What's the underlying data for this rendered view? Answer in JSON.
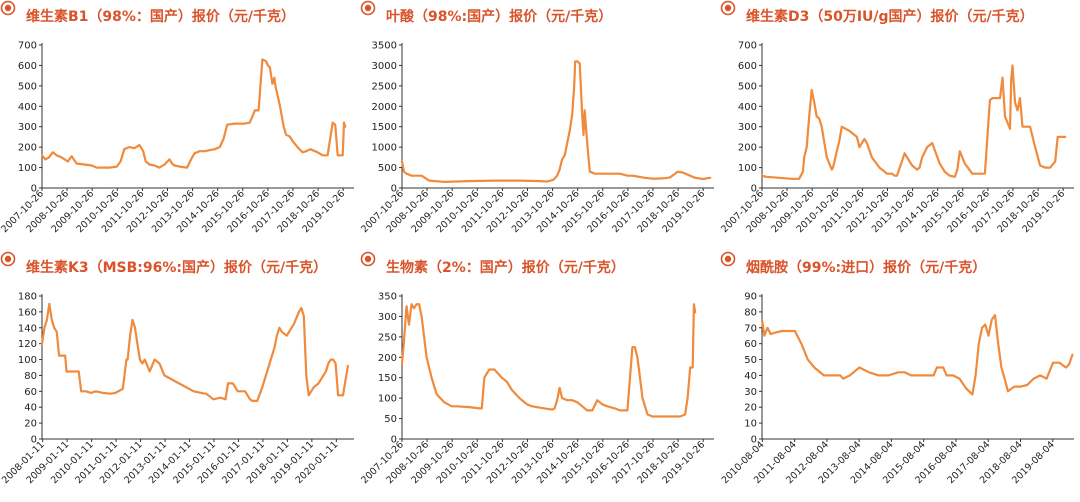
{
  "line_color": "#f08a3c",
  "title_color": "#d9542a",
  "chart_data": [
    {
      "type": "line",
      "title": "维生素B1（98%：国产）报价（元/千克）",
      "ylim": [
        0,
        700
      ],
      "yticks": [
        "0",
        "100",
        "200",
        "300",
        "400",
        "500",
        "600",
        "700"
      ],
      "xlim": [
        2007.82,
        2020.25
      ],
      "xticks": [
        "2007-10-26",
        "2008-10-26",
        "2009-10-26",
        "2010-10-26",
        "2011-10-26",
        "2012-10-26",
        "2013-10-26",
        "2014-10-26",
        "2015-10-26",
        "2016-10-26",
        "2017-10-26",
        "2018-10-26",
        "2019-10-26"
      ],
      "series": [
        {
          "x": [
            2007.82,
            2007.95,
            2008.1,
            2008.25,
            2008.4,
            2008.6,
            2008.85,
            2009.0,
            2009.2,
            2009.5,
            2009.8,
            2010.0,
            2010.5,
            2010.8,
            2010.95,
            2011.1,
            2011.3,
            2011.5,
            2011.7,
            2011.85,
            2011.95,
            2012.1,
            2012.3,
            2012.5,
            2012.7,
            2012.9,
            2013.0,
            2013.1,
            2013.3,
            2013.6,
            2013.8,
            2013.9,
            2014.1,
            2014.3,
            2014.5,
            2014.7,
            2014.9,
            2015.05,
            2015.2,
            2015.5,
            2015.9,
            2016.1,
            2016.3,
            2016.45,
            2016.6,
            2016.75,
            2016.82,
            2016.9,
            2017.0,
            2017.08,
            2017.12,
            2017.3,
            2017.45,
            2017.55,
            2017.65,
            2017.7,
            2017.8,
            2018.0,
            2018.2,
            2018.35,
            2018.5,
            2018.6,
            2018.8,
            2019.0,
            2019.2,
            2019.4,
            2019.5,
            2019.6,
            2019.75,
            2019.8,
            2019.85,
            2019.9
          ],
          "y": [
            160,
            140,
            150,
            175,
            160,
            150,
            130,
            155,
            120,
            115,
            110,
            100,
            100,
            105,
            130,
            190,
            200,
            195,
            210,
            180,
            130,
            115,
            110,
            100,
            115,
            140,
            120,
            110,
            105,
            100,
            150,
            170,
            180,
            180,
            185,
            190,
            200,
            240,
            310,
            315,
            315,
            320,
            380,
            380,
            630,
            620,
            600,
            590,
            510,
            540,
            500,
            400,
            300,
            260,
            255,
            250,
            230,
            200,
            175,
            180,
            190,
            185,
            175,
            160,
            160,
            320,
            310,
            160,
            160,
            160,
            320,
            300
          ]
        }
      ]
    },
    {
      "type": "line",
      "title": "叶酸（98%:国产）报价（元/千克）",
      "ylim": [
        0,
        3500
      ],
      "yticks": [
        "0",
        "500",
        "1000",
        "1500",
        "2000",
        "2500",
        "3000",
        "3500"
      ],
      "xlim": [
        2007.82,
        2020.25
      ],
      "xticks": [
        "2007-10-26",
        "2008-10-26",
        "2009-10-26",
        "2010-10-26",
        "2011-10-26",
        "2012-10-26",
        "2013-10-26",
        "2014-10-26",
        "2015-10-26",
        "2016-10-26",
        "2017-10-26",
        "2018-10-26",
        "2019-10-26"
      ],
      "series": [
        {
          "x": [
            2007.82,
            2007.9,
            2008.0,
            2008.2,
            2008.6,
            2008.9,
            2009.5,
            2010.5,
            2011.5,
            2012.5,
            2013.3,
            2013.6,
            2013.85,
            2014.0,
            2014.1,
            2014.2,
            2014.3,
            2014.4,
            2014.5,
            2014.6,
            2014.68,
            2014.72,
            2014.8,
            2014.9,
            2015.0,
            2015.05,
            2015.1,
            2015.2,
            2015.3,
            2015.5,
            2015.8,
            2016.2,
            2016.5,
            2016.8,
            2017.0,
            2017.5,
            2017.8,
            2018.0,
            2018.3,
            2018.5,
            2018.8,
            2019.0,
            2019.5,
            2019.8,
            2020.1
          ],
          "y": [
            650,
            400,
            350,
            300,
            300,
            180,
            150,
            170,
            180,
            180,
            170,
            160,
            200,
            300,
            450,
            700,
            800,
            1100,
            1400,
            1800,
            2500,
            3100,
            3100,
            3050,
            1800,
            1300,
            1900,
            1100,
            400,
            350,
            350,
            350,
            350,
            300,
            300,
            250,
            230,
            230,
            240,
            260,
            400,
            380,
            250,
            220,
            250
          ]
        }
      ]
    },
    {
      "type": "line",
      "title": "维生素D3（50万IU/g国产）报价（元/千克）",
      "ylim": [
        0,
        700
      ],
      "yticks": [
        "0",
        "100",
        "200",
        "300",
        "400",
        "500",
        "600",
        "700"
      ],
      "xlim": [
        2007.82,
        2020.25
      ],
      "xticks": [
        "2007-10-26",
        "2008-10-26",
        "2009-10-26",
        "2010-10-26",
        "2011-10-26",
        "2012-10-26",
        "2013-10-26",
        "2014-10-26",
        "2015-10-26",
        "2016-10-26",
        "2017-10-26",
        "2018-10-26",
        "2019-10-26"
      ],
      "series": [
        {
          "x": [
            2007.82,
            2008.0,
            2008.5,
            2009.0,
            2009.3,
            2009.45,
            2009.5,
            2009.6,
            2009.7,
            2009.8,
            2009.9,
            2010.0,
            2010.1,
            2010.2,
            2010.4,
            2010.6,
            2010.65,
            2010.8,
            2010.9,
            2011.0,
            2011.3,
            2011.5,
            2011.6,
            2011.7,
            2011.9,
            2012.0,
            2012.2,
            2012.5,
            2012.8,
            2013.0,
            2013.1,
            2013.2,
            2013.5,
            2013.8,
            2014.0,
            2014.1,
            2014.2,
            2014.4,
            2014.6,
            2014.9,
            2015.1,
            2015.3,
            2015.5,
            2015.6,
            2015.7,
            2015.9,
            2016.2,
            2016.5,
            2016.6,
            2016.7,
            2016.9,
            2017.0,
            2017.1,
            2017.15,
            2017.2,
            2017.3,
            2017.4,
            2017.5,
            2017.6,
            2017.7,
            2017.75,
            2017.8,
            2017.9,
            2018.0,
            2018.1,
            2018.2,
            2018.5,
            2018.7,
            2018.9,
            2019.1,
            2019.3,
            2019.5,
            2019.6,
            2019.7,
            2019.8,
            2019.9
          ],
          "y": [
            60,
            55,
            50,
            45,
            45,
            80,
            150,
            200,
            350,
            480,
            420,
            350,
            340,
            300,
            150,
            90,
            100,
            180,
            230,
            300,
            280,
            260,
            250,
            200,
            240,
            220,
            150,
            100,
            70,
            70,
            60,
            60,
            170,
            110,
            90,
            100,
            150,
            200,
            220,
            120,
            80,
            60,
            55,
            90,
            180,
            120,
            70,
            70,
            70,
            70,
            430,
            440,
            440,
            440,
            440,
            440,
            540,
            350,
            320,
            290,
            530,
            600,
            420,
            380,
            440,
            300,
            300,
            200,
            110,
            100,
            100,
            130,
            250,
            250,
            250,
            250
          ]
        }
      ]
    },
    {
      "type": "line",
      "title": "维生素K3（MSB:96%:国产）报价（元/千克）",
      "ylim": [
        0,
        180
      ],
      "yticks": [
        "0",
        "20",
        "40",
        "60",
        "80",
        "100",
        "120",
        "140",
        "160",
        "180"
      ],
      "xlim": [
        2008.0,
        2020.75
      ],
      "xticks": [
        "2008-01-11",
        "2009-01-11",
        "2010-01-11",
        "2011-01-11",
        "2012-01-11",
        "2013-01-11",
        "2014-01-11",
        "2015-01-11",
        "2016-01-11",
        "2017-01-11",
        "2018-01-11",
        "2019-01-11",
        "2020-01-11"
      ],
      "series": [
        {
          "x": [
            2008.0,
            2008.1,
            2008.2,
            2008.3,
            2008.4,
            2008.5,
            2008.6,
            2008.7,
            2008.8,
            2008.95,
            2009.0,
            2009.2,
            2009.5,
            2009.6,
            2009.8,
            2010.0,
            2010.2,
            2010.5,
            2010.8,
            2011.0,
            2011.3,
            2011.45,
            2011.5,
            2011.6,
            2011.7,
            2011.8,
            2011.9,
            2012.0,
            2012.1,
            2012.2,
            2012.4,
            2012.6,
            2012.8,
            2013.0,
            2013.3,
            2013.6,
            2013.9,
            2014.2,
            2014.5,
            2014.7,
            2014.8,
            2015.0,
            2015.3,
            2015.5,
            2015.6,
            2015.8,
            2016.0,
            2016.3,
            2016.5,
            2016.6,
            2016.8,
            2017.0,
            2017.1,
            2017.3,
            2017.5,
            2017.6,
            2017.7,
            2017.8,
            2018.0,
            2018.3,
            2018.5,
            2018.6,
            2018.7,
            2018.8,
            2018.9,
            2019.0,
            2019.1,
            2019.3,
            2019.5,
            2019.6,
            2019.7,
            2019.8,
            2019.9,
            2020.0,
            2020.1,
            2020.3,
            2020.5
          ],
          "y": [
            120,
            140,
            150,
            170,
            150,
            140,
            135,
            105,
            105,
            105,
            85,
            85,
            85,
            60,
            60,
            58,
            60,
            58,
            57,
            58,
            63,
            100,
            100,
            130,
            150,
            140,
            120,
            100,
            95,
            100,
            85,
            100,
            95,
            80,
            75,
            70,
            65,
            60,
            58,
            57,
            55,
            50,
            52,
            50,
            70,
            70,
            60,
            60,
            50,
            48,
            48,
            65,
            75,
            95,
            115,
            130,
            140,
            135,
            130,
            145,
            160,
            165,
            155,
            80,
            55,
            60,
            65,
            70,
            80,
            85,
            95,
            100,
            100,
            95,
            55,
            55,
            92
          ]
        }
      ]
    },
    {
      "type": "line",
      "title": "生物素（2%：国产）报价（元/千克）",
      "ylim": [
        0,
        350
      ],
      "yticks": [
        "0",
        "50",
        "100",
        "150",
        "200",
        "250",
        "300",
        "350"
      ],
      "xlim": [
        2007.82,
        2020.25
      ],
      "xticks": [
        "2007-10-26",
        "2008-10-26",
        "2009-10-26",
        "2010-10-26",
        "2011-10-26",
        "2012-10-26",
        "2013-10-26",
        "2014-10-26",
        "2015-10-26",
        "2016-10-26",
        "2017-10-26",
        "2018-10-26",
        "2019-10-26"
      ],
      "series": [
        {
          "x": [
            2007.82,
            2007.9,
            2008.0,
            2008.1,
            2008.2,
            2008.3,
            2008.4,
            2008.5,
            2008.6,
            2008.7,
            2008.8,
            2009.0,
            2009.2,
            2009.5,
            2009.8,
            2010.0,
            2010.5,
            2010.9,
            2011.0,
            2011.1,
            2011.3,
            2011.5,
            2011.8,
            2012.0,
            2012.2,
            2012.5,
            2012.8,
            2013.0,
            2013.5,
            2013.8,
            2013.9,
            2014.0,
            2014.1,
            2014.2,
            2014.4,
            2014.6,
            2014.8,
            2015.0,
            2015.2,
            2015.4,
            2015.6,
            2015.8,
            2016.0,
            2016.3,
            2016.5,
            2016.6,
            2016.8,
            2017.0,
            2017.1,
            2017.2,
            2017.3,
            2017.4,
            2017.6,
            2017.8,
            2018.0,
            2018.3,
            2018.6,
            2018.9,
            2019.1,
            2019.2,
            2019.3,
            2019.4,
            2019.45,
            2019.5
          ],
          "y": [
            185,
            240,
            325,
            280,
            330,
            320,
            330,
            330,
            300,
            250,
            200,
            150,
            110,
            90,
            80,
            80,
            78,
            75,
            75,
            150,
            170,
            170,
            150,
            140,
            120,
            100,
            85,
            80,
            75,
            72,
            75,
            95,
            125,
            100,
            95,
            95,
            90,
            80,
            70,
            70,
            95,
            85,
            80,
            75,
            70,
            70,
            70,
            225,
            225,
            200,
            150,
            100,
            60,
            55,
            55,
            55,
            55,
            55,
            60,
            100,
            175,
            175,
            330,
            310
          ]
        }
      ]
    },
    {
      "type": "line",
      "title": "烟酰胺（99%:进口）报价（元/千克）",
      "ylim": [
        0,
        90
      ],
      "yticks": [
        "0",
        "10",
        "20",
        "30",
        "40",
        "50",
        "60",
        "70",
        "80",
        "90"
      ],
      "xlim": [
        2010.58,
        2020.25
      ],
      "xticks": [
        "2010-08-04",
        "2011-08-04",
        "2012-08-04",
        "2013-08-04",
        "2014-08-04",
        "2015-08-04",
        "2016-08-04",
        "2017-08-04",
        "2018-08-04",
        "2019-08-04"
      ],
      "series": [
        {
          "x": [
            2010.58,
            2010.65,
            2010.75,
            2010.85,
            2011.0,
            2011.2,
            2011.4,
            2011.6,
            2011.8,
            2012.0,
            2012.2,
            2012.5,
            2012.8,
            2013.0,
            2013.1,
            2013.3,
            2013.6,
            2013.9,
            2014.2,
            2014.5,
            2014.8,
            2015.0,
            2015.2,
            2015.4,
            2015.6,
            2015.9,
            2016.0,
            2016.2,
            2016.3,
            2016.4,
            2016.5,
            2016.7,
            2016.9,
            2017.0,
            2017.1,
            2017.2,
            2017.3,
            2017.4,
            2017.5,
            2017.6,
            2017.65,
            2017.7,
            2017.8,
            2017.9,
            2018.0,
            2018.1,
            2018.2,
            2018.4,
            2018.6,
            2018.8,
            2019.0,
            2019.2,
            2019.4,
            2019.6,
            2019.8,
            2020.0,
            2020.1,
            2020.2
          ],
          "y": [
            75,
            65,
            70,
            66,
            67,
            68,
            68,
            68,
            60,
            50,
            45,
            40,
            40,
            40,
            38,
            40,
            45,
            42,
            40,
            40,
            42,
            42,
            40,
            40,
            40,
            40,
            45,
            45,
            40,
            40,
            40,
            38,
            32,
            30,
            28,
            40,
            60,
            70,
            72,
            65,
            70,
            75,
            78,
            60,
            45,
            38,
            30,
            33,
            33,
            34,
            38,
            40,
            38,
            48,
            48,
            45,
            47,
            53
          ]
        }
      ]
    }
  ]
}
